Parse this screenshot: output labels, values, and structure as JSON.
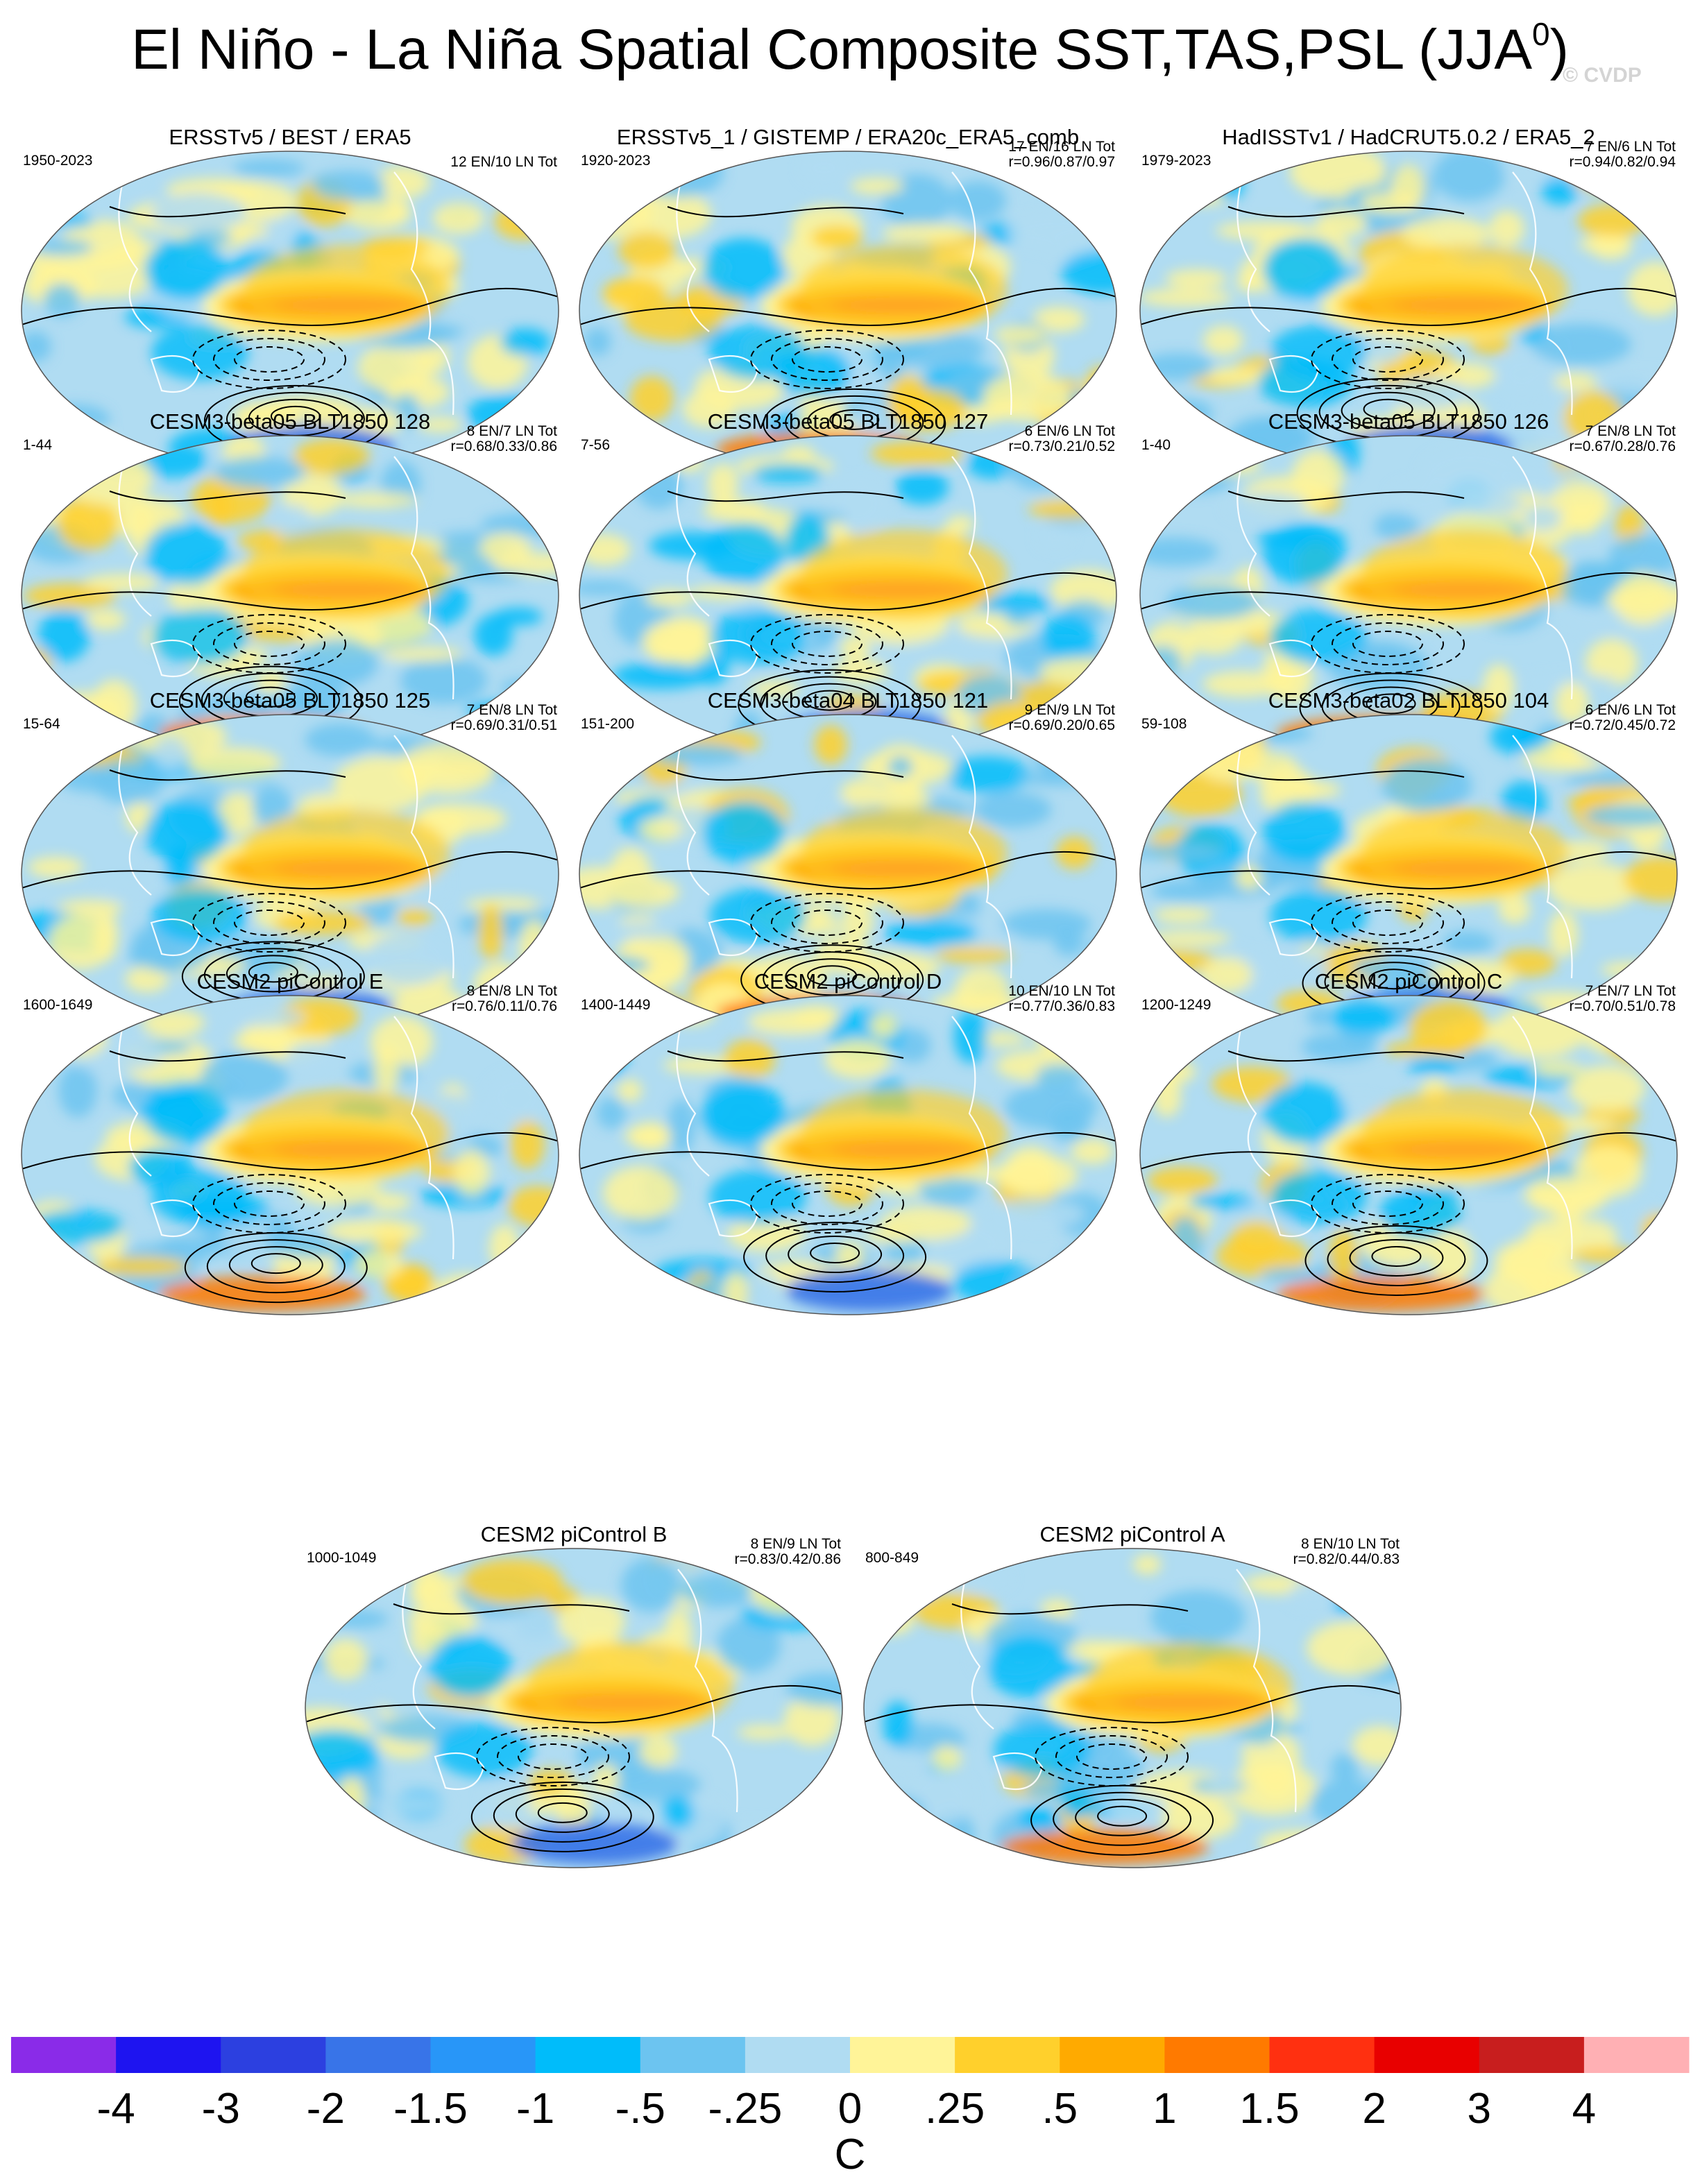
{
  "title": "El Niño - La Niña Spatial Composite SST,TAS,PSL (JJA",
  "title_superscript": "0",
  "title_suffix": ")",
  "copyright": "© CVDP",
  "panels": [
    {
      "title": "ERSSTv5 / BEST / ERA5",
      "years": "1950-2023",
      "counts": "12 EN/10 LN Tot",
      "corr": "",
      "variant": 0
    },
    {
      "title": "ERSSTv5_1 / GISTEMP / ERA20c_ERA5_comb",
      "years": "1920-2023",
      "counts": "17 EN/16 LN Tot",
      "corr": "r=0.96/0.87/0.97",
      "variant": 1
    },
    {
      "title": "HadISSTv1 / HadCRUT5.0.2 / ERA5_2",
      "years": "1979-2023",
      "counts": "7 EN/6 LN Tot",
      "corr": "r=0.94/0.82/0.94",
      "variant": 2
    },
    {
      "title": "CESM3-beta05 BLT1850 128",
      "years": "1-44",
      "counts": "8 EN/7 LN Tot",
      "corr": "r=0.68/0.33/0.86",
      "variant": 3
    },
    {
      "title": "CESM3-beta05 BLT1850 127",
      "years": "7-56",
      "counts": "6 EN/6 LN Tot",
      "corr": "r=0.73/0.21/0.52",
      "variant": 4
    },
    {
      "title": "CESM3-beta05 BLT1850 126",
      "years": "1-40",
      "counts": "7 EN/8 LN Tot",
      "corr": "r=0.67/0.28/0.76",
      "variant": 5
    },
    {
      "title": "CESM3-beta05 BLT1850 125",
      "years": "15-64",
      "counts": "7 EN/8 LN Tot",
      "corr": "r=0.69/0.31/0.51",
      "variant": 6
    },
    {
      "title": "CESM3-beta04 BLT1850 121",
      "years": "151-200",
      "counts": "9 EN/9 LN Tot",
      "corr": "r=0.69/0.20/0.65",
      "variant": 7
    },
    {
      "title": "CESM3-beta02 BLT1850 104",
      "years": "59-108",
      "counts": "6 EN/6 LN Tot",
      "corr": "r=0.72/0.45/0.72",
      "variant": 8
    },
    {
      "title": "CESM2 piControl E",
      "years": "1600-1649",
      "counts": "8 EN/8 LN Tot",
      "corr": "r=0.76/0.11/0.76",
      "variant": 9
    },
    {
      "title": "CESM2 piControl D",
      "years": "1400-1449",
      "counts": "10 EN/10 LN Tot",
      "corr": "r=0.77/0.36/0.83",
      "variant": 10
    },
    {
      "title": "CESM2 piControl C",
      "years": "1200-1249",
      "counts": "7 EN/7 LN Tot",
      "corr": "r=0.70/0.51/0.78",
      "variant": 11
    },
    {
      "title": "CESM2 piControl B",
      "years": "1000-1049",
      "counts": "8 EN/9 LN Tot",
      "corr": "r=0.83/0.42/0.86",
      "variant": 12
    },
    {
      "title": "CESM2 piControl A",
      "years": "800-849",
      "counts": "8 EN/10 LN Tot",
      "corr": "r=0.82/0.44/0.83",
      "variant": 13
    }
  ],
  "colorbar": {
    "colors": [
      "#8a2be8",
      "#1e14f0",
      "#2c40e0",
      "#3874e8",
      "#2896f8",
      "#00bcfa",
      "#6cc4f0",
      "#b0dcf2",
      "#fff498",
      "#ffd02c",
      "#ffaa00",
      "#ff7a00",
      "#ff3010",
      "#e80000",
      "#c81e1e",
      "#ffb0b4"
    ],
    "labels": [
      "-4",
      "-3",
      "-2",
      "-1.5",
      "-1",
      "-.5",
      "-.25",
      "0",
      ".25",
      ".5",
      "1",
      "1.5",
      "2",
      "3",
      "4"
    ],
    "units": "C"
  }
}
